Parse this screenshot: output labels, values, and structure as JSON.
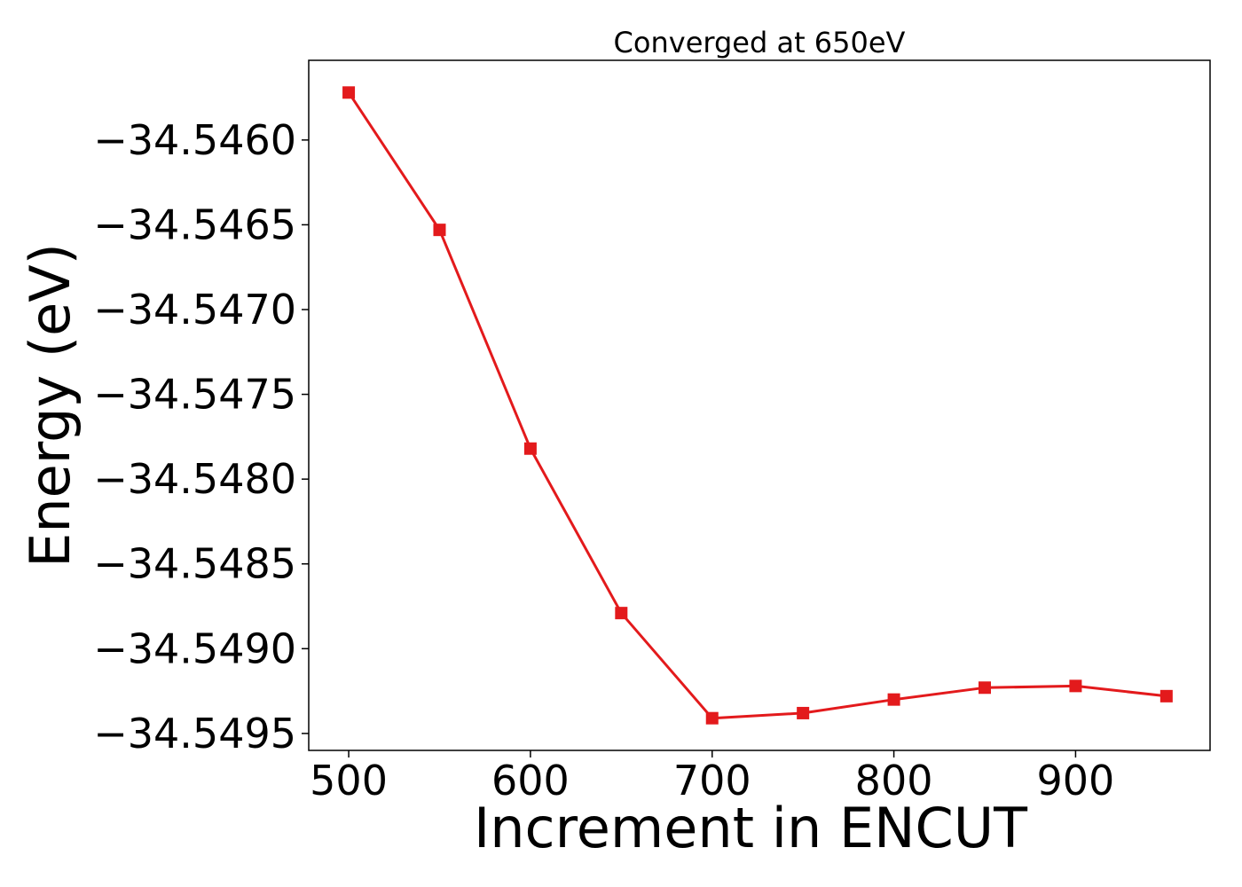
{
  "chart_data": {
    "type": "line",
    "title": "Converged at 650eV",
    "xlabel": "Increment in ENCUT",
    "ylabel": "Energy (eV)",
    "xlim": [
      478,
      974
    ],
    "ylim": [
      -34.5496,
      -34.54553
    ],
    "xticks": [
      500,
      600,
      700,
      800,
      900
    ],
    "xtick_labels": [
      "500",
      "600",
      "700",
      "800",
      "900"
    ],
    "yticks": [
      -34.546,
      -34.5465,
      -34.547,
      -34.5475,
      -34.548,
      -34.5485,
      -34.549,
      -34.5495
    ],
    "ytick_labels": [
      "−34.5460",
      "−34.5465",
      "−34.5470",
      "−34.5475",
      "−34.5480",
      "−34.5485",
      "−34.5490",
      "−34.5495"
    ],
    "grid": false,
    "legend": "none",
    "series": [
      {
        "color": "#e31a1c",
        "marker": "square",
        "x": [
          500,
          550,
          600,
          650,
          700,
          750,
          800,
          850,
          900,
          950
        ],
        "y": [
          -34.54572,
          -34.54653,
          -34.54782,
          -34.54879,
          -34.54941,
          -34.54938,
          -34.5493,
          -34.54923,
          -34.54922,
          -34.54928
        ]
      }
    ]
  }
}
